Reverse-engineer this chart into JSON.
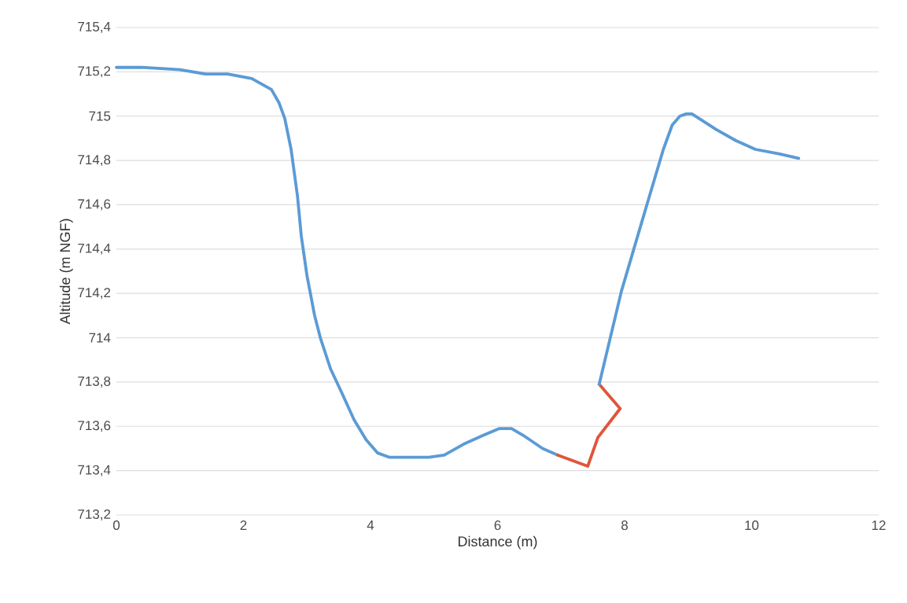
{
  "chart_data": {
    "type": "line",
    "xlabel": "Distance (m)",
    "ylabel": "Altitude (m NGF)",
    "series": [
      {
        "color": "#5b9bd5",
        "x": [
          0,
          0.4,
          1.0,
          1.4,
          1.75,
          2.13,
          2.44,
          2.56,
          2.65,
          2.75,
          2.85,
          2.91,
          3.0,
          3.12,
          3.21,
          3.37,
          3.55,
          3.74,
          3.93,
          4.11,
          4.3,
          4.54,
          4.92,
          5.16,
          5.47,
          5.78,
          6.03,
          6.22,
          6.4,
          6.71,
          6.95
        ],
        "values": [
          715.22,
          715.22,
          715.21,
          715.19,
          715.19,
          715.17,
          715.12,
          715.06,
          714.99,
          714.85,
          714.64,
          714.46,
          714.28,
          714.1,
          714.0,
          713.86,
          713.75,
          713.63,
          713.54,
          713.48,
          713.46,
          713.46,
          713.46,
          713.47,
          713.52,
          713.56,
          713.59,
          713.59,
          713.56,
          713.5,
          713.47
        ]
      },
      {
        "color": "#e0553a",
        "x": [
          6.95,
          7.42,
          7.58,
          7.93,
          7.6
        ],
        "values": [
          713.47,
          713.42,
          713.55,
          713.68,
          713.79
        ]
      },
      {
        "color": "#5b9bd5",
        "x": [
          7.6,
          7.95,
          8.32,
          8.61,
          8.75,
          8.87,
          8.97,
          9.06,
          9.44,
          9.75,
          10.06,
          10.43,
          10.74
        ],
        "values": [
          713.79,
          714.21,
          714.57,
          714.85,
          714.96,
          715.0,
          715.01,
          715.01,
          714.94,
          714.89,
          714.85,
          714.83,
          714.81
        ]
      }
    ],
    "xlim": [
      0,
      12
    ],
    "xticks": [
      0,
      2,
      4,
      6,
      8,
      10,
      12
    ],
    "ylim": [
      713.2,
      715.4
    ],
    "yticks": [
      {
        "value": 713.2,
        "label": "713,2"
      },
      {
        "value": 713.4,
        "label": "713,4"
      },
      {
        "value": 713.6,
        "label": "713,6"
      },
      {
        "value": 713.8,
        "label": "713,8"
      },
      714,
      {
        "value": 714.2,
        "label": "714,2"
      },
      {
        "value": 714.4,
        "label": "714,4"
      },
      {
        "value": 714.6,
        "label": "714,6"
      },
      {
        "value": 714.8,
        "label": "714,8"
      },
      715,
      {
        "value": 715.2,
        "label": "715,2"
      },
      {
        "value": 715.4,
        "label": "715,4"
      }
    ],
    "grid": "y"
  }
}
